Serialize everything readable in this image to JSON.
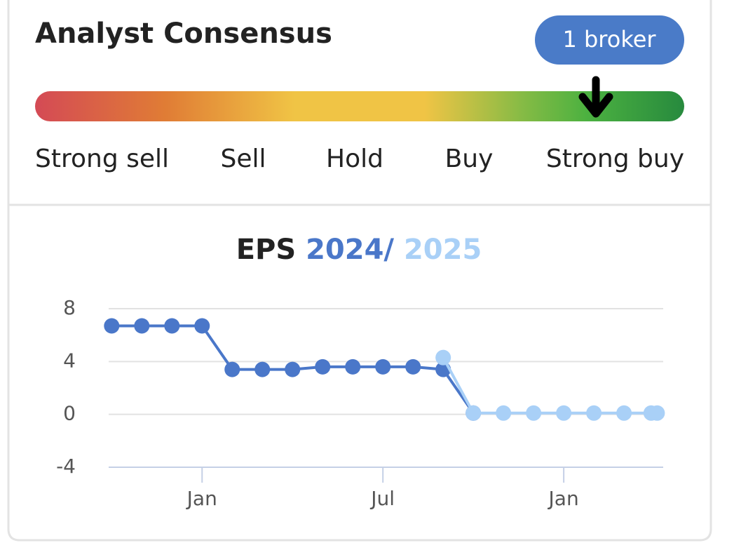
{
  "consensus": {
    "title": "Analyst Consensus",
    "badge": "1 broker",
    "scale_labels": [
      "Strong sell",
      "Sell",
      "Hold",
      "Buy",
      "Strong buy"
    ]
  },
  "chart_data": {
    "type": "line",
    "title": "EPS",
    "title_separator": "/",
    "series": [
      {
        "name": "2024",
        "color": "#4a77c9",
        "x": [
          -3,
          -2,
          -1,
          0,
          1,
          2,
          3,
          4,
          5,
          6,
          7,
          8,
          9
        ],
        "values": [
          6.7,
          6.7,
          6.7,
          6.7,
          3.4,
          3.4,
          3.4,
          3.6,
          3.6,
          3.6,
          3.6,
          3.4,
          0.1
        ]
      },
      {
        "name": "2025",
        "color": "#a9d0f7",
        "x": [
          8,
          9,
          10,
          11,
          12,
          13,
          14,
          14.9,
          15.1
        ],
        "values": [
          4.3,
          0.1,
          0.1,
          0.1,
          0.1,
          0.1,
          0.1,
          0.1,
          0.1
        ]
      }
    ],
    "xlim": [
      -3.1,
      15.3
    ],
    "xticks": [
      {
        "value": 0,
        "label": "Jan"
      },
      {
        "value": 6,
        "label": "Jul"
      },
      {
        "value": 12,
        "label": "Jan"
      }
    ],
    "ylim": [
      -4,
      8
    ],
    "yticks": [
      -4,
      0,
      4,
      8
    ],
    "grid": true
  }
}
